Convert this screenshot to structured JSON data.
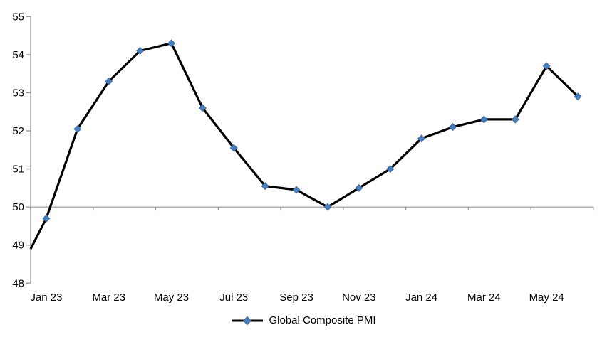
{
  "chart_data": {
    "type": "line",
    "title": "",
    "xlabel": "",
    "ylabel": "",
    "ylim": [
      48,
      55
    ],
    "y_ticks": [
      48,
      49,
      50,
      51,
      52,
      53,
      54,
      55
    ],
    "x_tick_labels": [
      "Jan 23",
      "Mar 23",
      "May 23",
      "Jul 23",
      "Sep 23",
      "Nov 23",
      "Jan 24",
      "Mar 24",
      "May 24"
    ],
    "x_tick_label_interval": 2,
    "axis_crosses_at": 50,
    "grid": "none (only the category axis line at value 50 spans the plot)",
    "legend_position": "bottom-center",
    "series": [
      {
        "name": "Global Composite PMI",
        "marker": "diamond",
        "categories": [
          "Jan 23",
          "Feb 23",
          "Mar 23",
          "Apr 23",
          "May 23",
          "Jun 23",
          "Jul 23",
          "Aug 23",
          "Sep 23",
          "Oct 23",
          "Nov 23",
          "Dec 23",
          "Jan 24",
          "Feb 24",
          "Mar 24",
          "Apr 24",
          "May 24",
          "Jun 24"
        ],
        "values": [
          49.7,
          52.05,
          53.3,
          54.1,
          54.3,
          52.6,
          51.55,
          50.55,
          50.45,
          50.0,
          50.5,
          51.0,
          51.8,
          52.1,
          52.3,
          52.3,
          53.7,
          52.9
        ],
        "leading_point": {
          "label": "Dec 22",
          "value": 48.9,
          "marker_visible": false,
          "note": "line starts at the y-axis edge"
        }
      }
    ],
    "legend": {
      "label": "Global Composite PMI"
    }
  },
  "colors": {
    "background": "#ffffff",
    "axis": "#979797",
    "cross_line_50": "#a0a0a0",
    "series_line": "#000000",
    "marker_fill": "#4a7ebd",
    "marker_stroke": "#3a69a3",
    "tick_label_text": "#000000"
  }
}
